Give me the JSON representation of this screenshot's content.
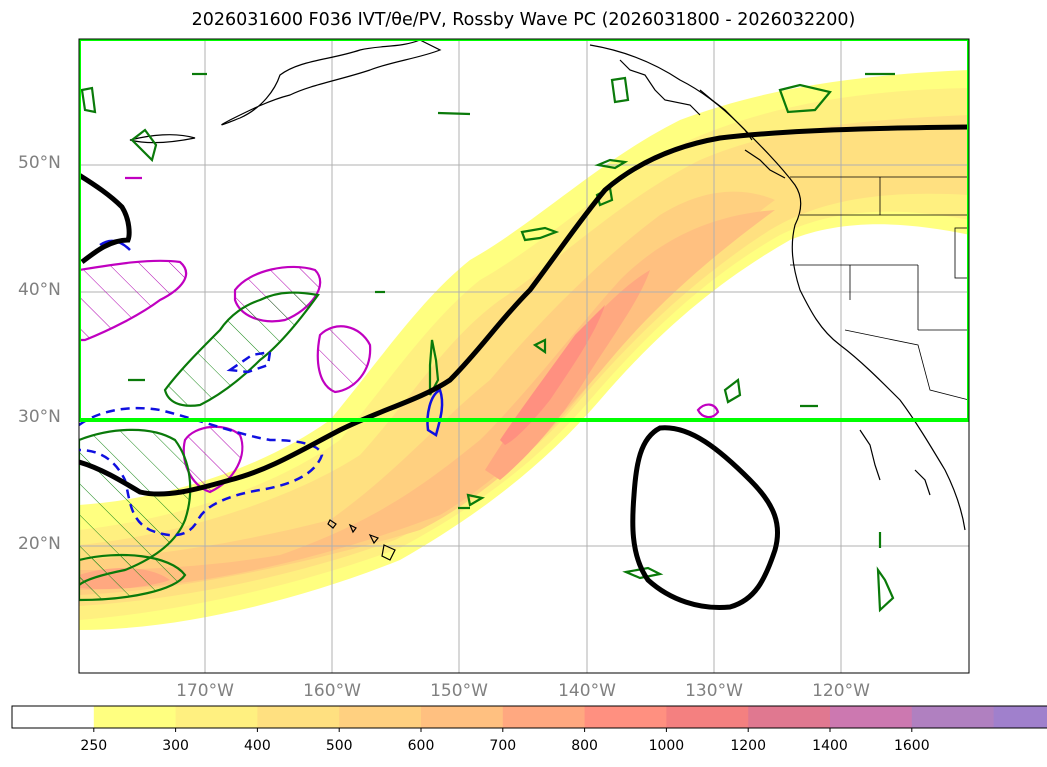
{
  "title": "2026031600 F036 IVT/θe/PV, Rossby Wave PC (2026031800 - 2026032200)",
  "map": {
    "lat_labels": [
      "50°N",
      "40°N",
      "30°N",
      "20°N"
    ],
    "lon_labels": [
      "170°W",
      "160°W",
      "150°W",
      "140°W",
      "130°W",
      "120°W"
    ],
    "highlight_box": {
      "color": "#00ff00",
      "lat_min": 30,
      "lat_max": 60,
      "lon_min": -180,
      "lon_max": -110
    },
    "rossby_wave_contour_color": "#000000",
    "pv_contour_color": "#008000",
    "theta_e_contour_color": "#c000c0",
    "dashed_contour_color": "#0000ff"
  },
  "colorbar": {
    "labels": [
      "250",
      "300",
      "400",
      "500",
      "600",
      "700",
      "800",
      "1000",
      "1200",
      "1400",
      "1600"
    ],
    "colors": [
      "#ffff80",
      "#fff080",
      "#ffe080",
      "#ffd080",
      "#ffc080",
      "#ffa880",
      "#ff9080",
      "#f48080",
      "#e07890",
      "#cc78b0",
      "#b080c0",
      "#a080cc"
    ],
    "extend": "max"
  }
}
